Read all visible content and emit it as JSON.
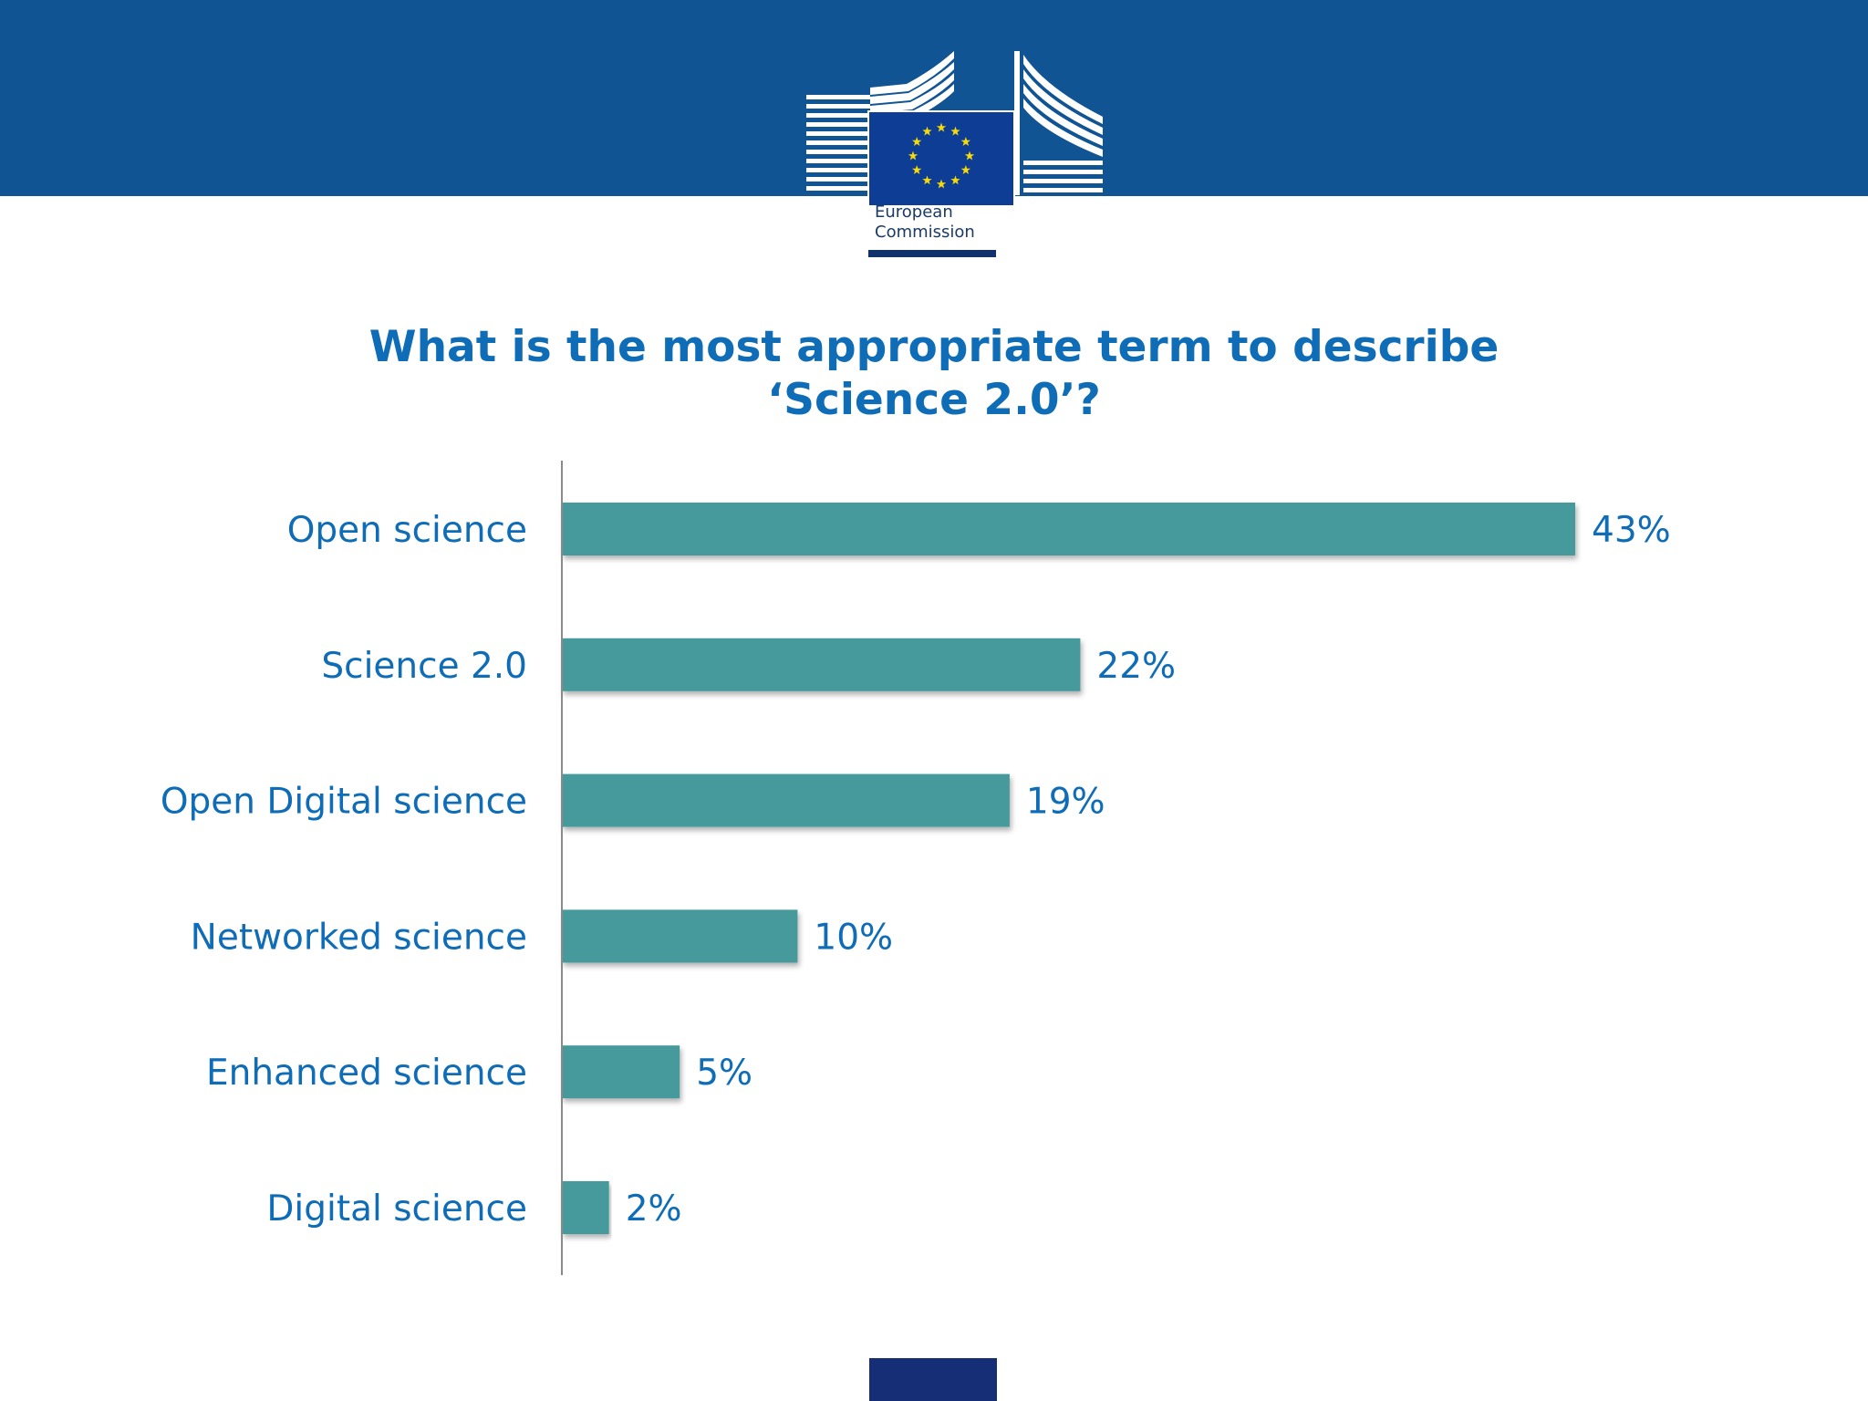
{
  "header": {
    "logo_line1": "European",
    "logo_line2": "Commission",
    "brand_color": "#115494"
  },
  "chart_data": {
    "type": "bar",
    "orientation": "horizontal",
    "title_line1": "What is the most appropriate term to describe",
    "title_line2": "‘Science 2.0’?",
    "categories": [
      "Open science",
      "Science 2.0",
      "Open Digital science",
      "Networked science",
      "Enhanced science",
      "Digital science"
    ],
    "values": [
      43,
      22,
      19,
      10,
      5,
      2
    ],
    "value_labels": [
      "43%",
      "22%",
      "19%",
      "10%",
      "5%",
      "2%"
    ],
    "unit": "%",
    "xlim": [
      0,
      43
    ],
    "bar_color": "#469a9c",
    "text_color": "#0f6cb6",
    "grid": false,
    "legend": "none"
  }
}
